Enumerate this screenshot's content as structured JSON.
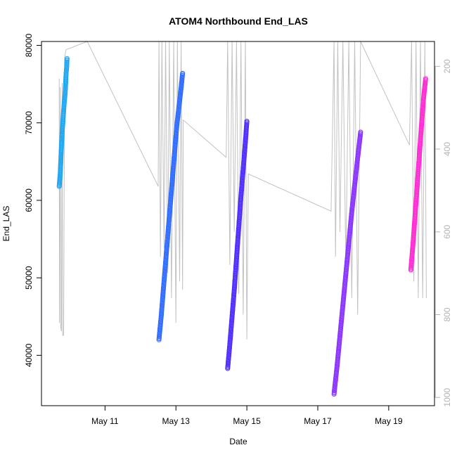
{
  "chart_data": {
    "type": "scatter",
    "title": "ATOM4 Northbound End_LAS",
    "xlabel": "Date",
    "ylabel": "End_LAS",
    "xlim": [
      "2023-05-09 05:00",
      "2023-05-20 07:00"
    ],
    "ylim": [
      33500,
      80500
    ],
    "x_ticks": [
      {
        "date": "2023-05-11",
        "label": "May 11"
      },
      {
        "date": "2023-05-13",
        "label": "May 13"
      },
      {
        "date": "2023-05-15",
        "label": "May 15"
      },
      {
        "date": "2023-05-17",
        "label": "May 17"
      },
      {
        "date": "2023-05-19",
        "label": "May 19"
      }
    ],
    "y_ticks": [
      40000,
      50000,
      60000,
      70000,
      80000
    ],
    "y2_ticks": [
      200,
      400,
      600,
      800,
      1000
    ],
    "y2lim": [
      1020,
      140
    ],
    "grid": false,
    "legend": "none",
    "colors": {
      "points_palette": [
        "#1fa7f0",
        "#2f6bff",
        "#4f2cff",
        "#8a33ff",
        "#ff2bd2"
      ],
      "secondary_series": "#c2c2c2",
      "axis": "#000000",
      "secondary_axis": "#b3b3b3"
    },
    "series": [
      {
        "color": "#1fa7f0",
        "points": [
          [
            "2023-05-09 17:00",
            61800
          ],
          [
            "2023-05-09 17:20",
            62600
          ],
          [
            "2023-05-09 17:40",
            63300
          ],
          [
            "2023-05-09 18:00",
            64700
          ],
          [
            "2023-05-09 18:20",
            66200
          ],
          [
            "2023-05-09 18:40",
            67600
          ],
          [
            "2023-05-09 19:00",
            68800
          ],
          [
            "2023-05-09 19:30",
            70200
          ],
          [
            "2023-05-09 20:00",
            71600
          ],
          [
            "2023-05-09 20:30",
            72800
          ],
          [
            "2023-05-09 21:00",
            73800
          ],
          [
            "2023-05-09 21:20",
            75000
          ],
          [
            "2023-05-09 21:40",
            76400
          ],
          [
            "2023-05-09 22:00",
            77000
          ],
          [
            "2023-05-09 22:20",
            78300
          ]
        ]
      },
      {
        "color": "#2f6bff",
        "points": [
          [
            "2023-05-12 12:30",
            42000
          ],
          [
            "2023-05-12 14:00",
            45000
          ],
          [
            "2023-05-12 15:30",
            48500
          ],
          [
            "2023-05-12 17:00",
            52000
          ],
          [
            "2023-05-12 18:30",
            55500
          ],
          [
            "2023-05-12 20:00",
            59000
          ],
          [
            "2023-05-12 21:30",
            62500
          ],
          [
            "2023-05-12 23:00",
            66000
          ],
          [
            "2023-05-13 00:30",
            69500
          ],
          [
            "2023-05-13 02:00",
            72000
          ],
          [
            "2023-05-13 03:30",
            74500
          ],
          [
            "2023-05-13 04:30",
            76400
          ]
        ]
      },
      {
        "color": "#4f2cff",
        "points": [
          [
            "2023-05-14 11:00",
            38300
          ],
          [
            "2023-05-14 12:30",
            41500
          ],
          [
            "2023-05-14 14:00",
            45000
          ],
          [
            "2023-05-14 15:30",
            48500
          ],
          [
            "2023-05-14 17:00",
            52500
          ],
          [
            "2023-05-14 18:30",
            56500
          ],
          [
            "2023-05-14 20:00",
            60500
          ],
          [
            "2023-05-14 21:30",
            64000
          ],
          [
            "2023-05-14 23:00",
            67500
          ],
          [
            "2023-05-15 00:00",
            70200
          ]
        ]
      },
      {
        "color": "#8a33ff",
        "points": [
          [
            "2023-05-17 11:00",
            35000
          ],
          [
            "2023-05-17 13:00",
            38500
          ],
          [
            "2023-05-17 15:00",
            42500
          ],
          [
            "2023-05-17 17:00",
            46500
          ],
          [
            "2023-05-17 19:00",
            50500
          ],
          [
            "2023-05-17 21:00",
            54500
          ],
          [
            "2023-05-17 23:00",
            58500
          ],
          [
            "2023-05-18 01:00",
            62000
          ],
          [
            "2023-05-18 03:00",
            65500
          ],
          [
            "2023-05-18 05:00",
            68800
          ]
        ]
      },
      {
        "color": "#ff2bd2",
        "points": [
          [
            "2023-05-19 15:00",
            51000
          ],
          [
            "2023-05-19 16:30",
            54500
          ],
          [
            "2023-05-19 18:00",
            58500
          ],
          [
            "2023-05-19 19:30",
            62500
          ],
          [
            "2023-05-19 21:00",
            66500
          ],
          [
            "2023-05-19 22:30",
            70500
          ],
          [
            "2023-05-19 23:30",
            73000
          ],
          [
            "2023-05-20 01:00",
            75700
          ]
        ]
      }
    ],
    "secondary_series": {
      "axis": "right",
      "style": "line",
      "points": [
        [
          "2023-05-09 17:00",
          230
        ],
        [
          "2023-05-09 17:10",
          820
        ],
        [
          "2023-05-09 17:40",
          250
        ],
        [
          "2023-05-09 18:00",
          830
        ],
        [
          "2023-05-09 18:30",
          840
        ],
        [
          "2023-05-09 19:00",
          240
        ],
        [
          "2023-05-09 19:20",
          850
        ],
        [
          "2023-05-09 20:00",
          850
        ],
        [
          "2023-05-09 20:40",
          180
        ],
        [
          "2023-05-09 21:30",
          160
        ],
        [
          "2023-05-10 12:00",
          130
        ],
        [
          "2023-05-12 12:00",
          490
        ],
        [
          "2023-05-12 12:30",
          130
        ],
        [
          "2023-05-12 13:30",
          660
        ],
        [
          "2023-05-12 14:30",
          130
        ],
        [
          "2023-05-12 16:00",
          640
        ],
        [
          "2023-05-12 17:00",
          130
        ],
        [
          "2023-05-12 18:30",
          700
        ],
        [
          "2023-05-12 19:30",
          130
        ],
        [
          "2023-05-12 21:00",
          760
        ],
        [
          "2023-05-12 22:30",
          130
        ],
        [
          "2023-05-13 00:00",
          820
        ],
        [
          "2023-05-13 01:00",
          130
        ],
        [
          "2023-05-13 02:30",
          720
        ],
        [
          "2023-05-13 03:30",
          130
        ],
        [
          "2023-05-13 04:30",
          740
        ],
        [
          "2023-05-13 05:00",
          330
        ],
        [
          "2023-05-14 10:00",
          420
        ],
        [
          "2023-05-14 11:00",
          130
        ],
        [
          "2023-05-14 12:30",
          680
        ],
        [
          "2023-05-14 14:00",
          130
        ],
        [
          "2023-05-14 15:30",
          600
        ],
        [
          "2023-05-14 17:00",
          130
        ],
        [
          "2023-05-14 18:30",
          750
        ],
        [
          "2023-05-14 20:00",
          130
        ],
        [
          "2023-05-14 21:30",
          800
        ],
        [
          "2023-05-14 23:00",
          130
        ],
        [
          "2023-05-15 00:00",
          860
        ],
        [
          "2023-05-15 01:00",
          460
        ],
        [
          "2023-05-17 09:00",
          550
        ],
        [
          "2023-05-17 11:00",
          130
        ],
        [
          "2023-05-17 12:00",
          660
        ],
        [
          "2023-05-17 13:30",
          130
        ],
        [
          "2023-05-17 15:00",
          600
        ],
        [
          "2023-05-17 17:00",
          130
        ],
        [
          "2023-05-17 19:00",
          680
        ],
        [
          "2023-05-17 21:00",
          130
        ],
        [
          "2023-05-17 23:00",
          760
        ],
        [
          "2023-05-18 01:00",
          130
        ],
        [
          "2023-05-18 03:00",
          800
        ],
        [
          "2023-05-18 05:00",
          130
        ],
        [
          "2023-05-19 14:00",
          390
        ],
        [
          "2023-05-19 15:30",
          130
        ],
        [
          "2023-05-19 17:00",
          720
        ],
        [
          "2023-05-19 18:30",
          130
        ],
        [
          "2023-05-19 20:00",
          760
        ],
        [
          "2023-05-19 21:30",
          130
        ],
        [
          "2023-05-19 23:00",
          760
        ],
        [
          "2023-05-20 00:30",
          130
        ],
        [
          "2023-05-20 01:30",
          760
        ]
      ]
    }
  }
}
